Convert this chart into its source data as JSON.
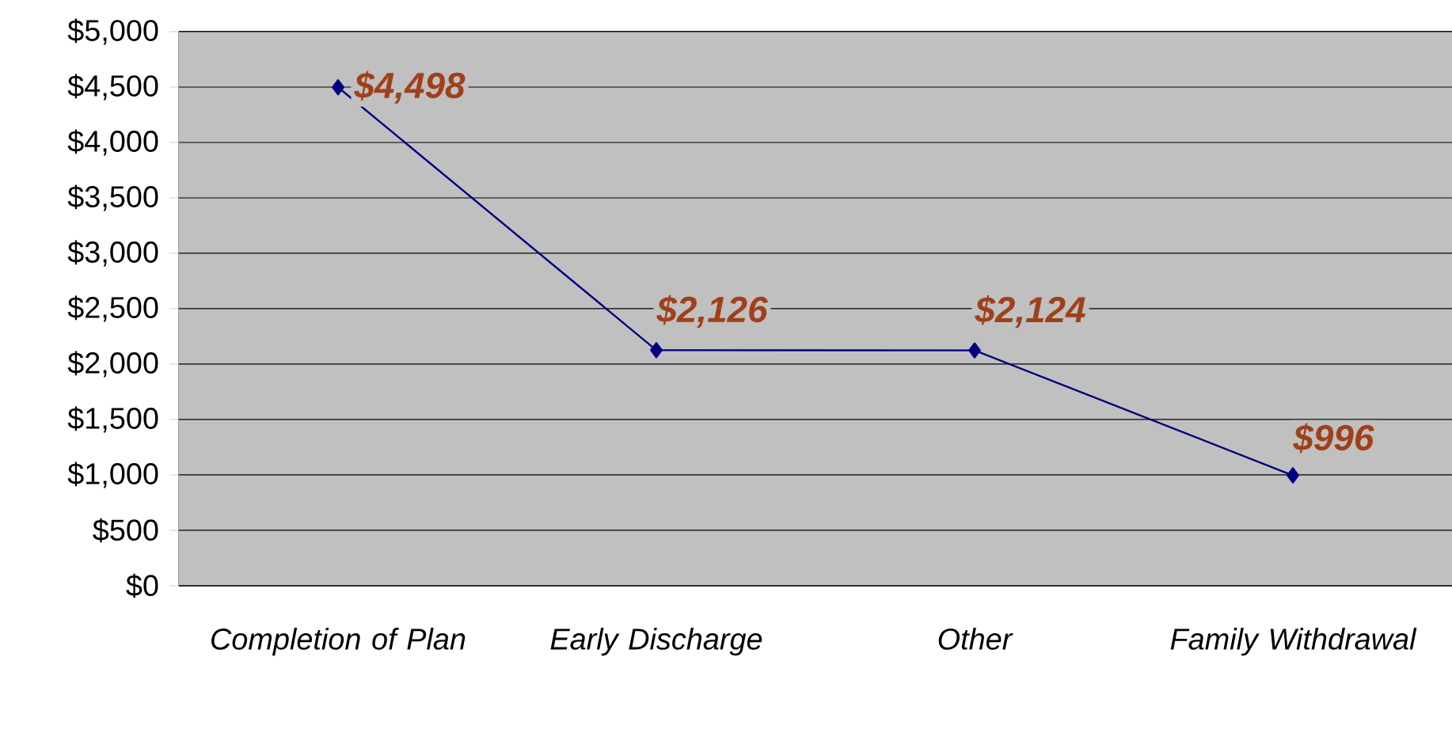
{
  "chart_data": {
    "type": "line",
    "categories": [
      "Completion of Plan",
      "Early Discharge",
      "Other",
      "Family Withdrawal"
    ],
    "values": [
      4498,
      2126,
      2124,
      996
    ],
    "value_labels": [
      "$4,498",
      "$2,126",
      "$2,124",
      "$996"
    ],
    "color": "#000080",
    "marker": "diamond",
    "line_style": "solid",
    "grid": "y",
    "ylim": [
      0,
      5000
    ],
    "yticks": [
      {
        "value": 0,
        "label": "$0"
      },
      {
        "value": 500,
        "label": "$500"
      },
      {
        "value": 1000,
        "label": "$1,000"
      },
      {
        "value": 1500,
        "label": "$1,500"
      },
      {
        "value": 2000,
        "label": "$2,000"
      },
      {
        "value": 2500,
        "label": "$2,500"
      },
      {
        "value": 3000,
        "label": "$3,000"
      },
      {
        "value": 3500,
        "label": "$3,500"
      },
      {
        "value": 4000,
        "label": "$4,000"
      },
      {
        "value": 4500,
        "label": "$4,500"
      },
      {
        "value": 5000,
        "label": "$5,000"
      }
    ]
  }
}
